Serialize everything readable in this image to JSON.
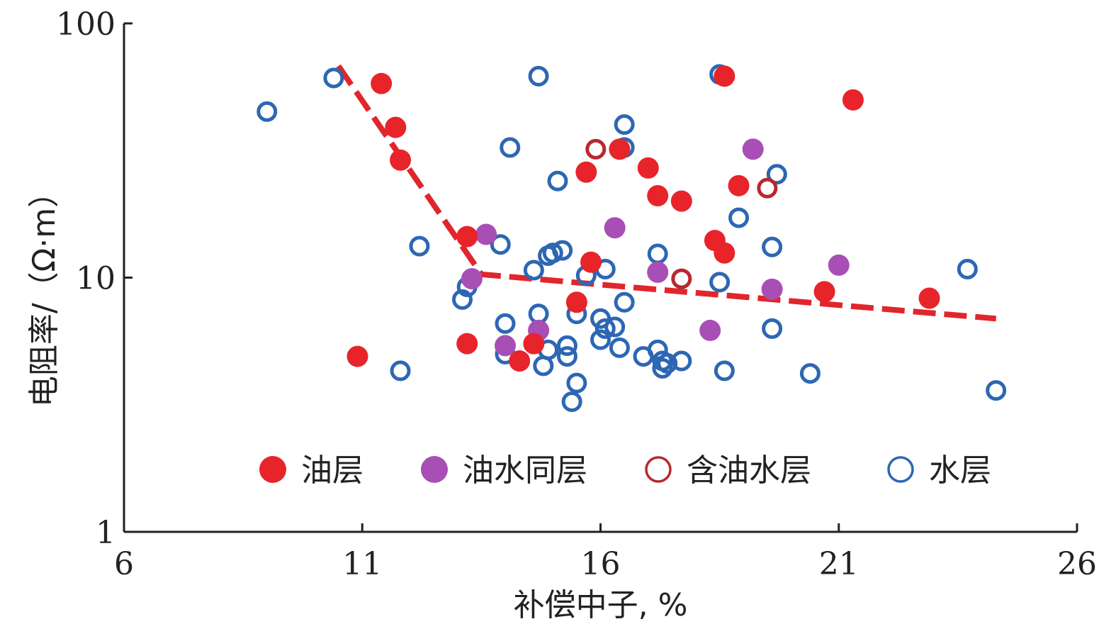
{
  "chart_data": {
    "type": "scatter",
    "title": "",
    "xlabel": "补偿中子, %",
    "ylabel": "电阻率/（Ω·m）",
    "xlim": [
      6,
      26
    ],
    "ylim": [
      1,
      100
    ],
    "yscale": "log",
    "x_ticks": [
      "6",
      "11",
      "16",
      "21",
      "26"
    ],
    "y_ticks": [
      "1",
      "10",
      "100"
    ],
    "grid": false,
    "legend_position": "bottom-center",
    "colors": {
      "oil": "#e8242b",
      "oil_water": "#a84fb5",
      "oil_bearing_water": "#b8282e",
      "water": "#2d67b3",
      "trend": "#e0262c",
      "axis": "#222222"
    },
    "series": [
      {
        "name": "油层",
        "marker": "filled",
        "color": "#e8242b",
        "points": [
          [
            10.9,
            4.9
          ],
          [
            11.4,
            58
          ],
          [
            11.7,
            39
          ],
          [
            11.8,
            29
          ],
          [
            13.2,
            14.5
          ],
          [
            13.2,
            5.5
          ],
          [
            14.3,
            4.7
          ],
          [
            14.6,
            5.5
          ],
          [
            15.5,
            8.0
          ],
          [
            15.7,
            26
          ],
          [
            15.8,
            11.5
          ],
          [
            16.4,
            32
          ],
          [
            17.0,
            27
          ],
          [
            17.2,
            21
          ],
          [
            17.7,
            20
          ],
          [
            18.4,
            14
          ],
          [
            18.6,
            12.5
          ],
          [
            18.6,
            62
          ],
          [
            18.9,
            23
          ],
          [
            20.7,
            8.8
          ],
          [
            21.3,
            50
          ],
          [
            22.9,
            8.3
          ]
        ]
      },
      {
        "name": "油水同层",
        "marker": "filled",
        "color": "#a84fb5",
        "points": [
          [
            13.3,
            9.9
          ],
          [
            13.6,
            14.8
          ],
          [
            14.0,
            5.4
          ],
          [
            14.7,
            6.2
          ],
          [
            16.3,
            15.7
          ],
          [
            17.2,
            10.5
          ],
          [
            18.3,
            6.2
          ],
          [
            19.2,
            32
          ],
          [
            19.6,
            9.0
          ],
          [
            21.0,
            11.2
          ]
        ]
      },
      {
        "name": "含油水层",
        "marker": "open",
        "color": "#b8282e",
        "points": [
          [
            15.9,
            32
          ],
          [
            17.7,
            9.9
          ],
          [
            19.5,
            22.5
          ]
        ]
      },
      {
        "name": "水层",
        "marker": "open",
        "color": "#2d67b3",
        "points": [
          [
            9.0,
            45
          ],
          [
            10.4,
            61
          ],
          [
            11.8,
            4.3
          ],
          [
            12.2,
            13.3
          ],
          [
            13.1,
            8.2
          ],
          [
            13.2,
            9.2
          ],
          [
            13.9,
            13.5
          ],
          [
            14.0,
            6.6
          ],
          [
            14.0,
            5.0
          ],
          [
            14.1,
            32.5
          ],
          [
            14.6,
            10.7
          ],
          [
            14.7,
            7.2
          ],
          [
            14.8,
            4.5
          ],
          [
            14.7,
            62
          ],
          [
            14.9,
            12.2
          ],
          [
            14.9,
            5.2
          ],
          [
            15.0,
            12.5
          ],
          [
            15.1,
            24
          ],
          [
            15.2,
            12.8
          ],
          [
            15.3,
            5.4
          ],
          [
            15.3,
            4.9
          ],
          [
            15.4,
            3.25
          ],
          [
            15.5,
            3.85
          ],
          [
            15.5,
            7.2
          ],
          [
            15.7,
            10.2
          ],
          [
            16.0,
            6.9
          ],
          [
            16.0,
            5.7
          ],
          [
            16.1,
            10.8
          ],
          [
            16.1,
            6.3
          ],
          [
            16.3,
            6.4
          ],
          [
            16.4,
            5.3
          ],
          [
            16.5,
            8.0
          ],
          [
            16.5,
            32.5
          ],
          [
            16.5,
            40
          ],
          [
            16.9,
            4.9
          ],
          [
            17.2,
            12.4
          ],
          [
            17.2,
            5.2
          ],
          [
            17.3,
            4.7
          ],
          [
            17.3,
            4.4
          ],
          [
            17.4,
            4.6
          ],
          [
            17.7,
            4.7
          ],
          [
            18.5,
            9.6
          ],
          [
            18.5,
            63
          ],
          [
            18.6,
            4.3
          ],
          [
            18.9,
            17.2
          ],
          [
            19.6,
            13.2
          ],
          [
            19.6,
            6.3
          ],
          [
            19.7,
            25.5
          ],
          [
            20.4,
            4.2
          ],
          [
            23.7,
            10.8
          ],
          [
            24.3,
            3.6
          ]
        ]
      }
    ],
    "trend_line": [
      [
        10.5,
        68
      ],
      [
        13.5,
        10.3
      ],
      [
        24.3,
        6.9
      ]
    ],
    "legend": {
      "items": [
        {
          "label": "油层",
          "marker": "filled",
          "color": "#e8242b"
        },
        {
          "label": "油水同层",
          "marker": "filled",
          "color": "#a84fb5"
        },
        {
          "label": "含油水层",
          "marker": "open",
          "color": "#b8282e"
        },
        {
          "label": "水层",
          "marker": "open",
          "color": "#2d67b3"
        }
      ]
    }
  }
}
